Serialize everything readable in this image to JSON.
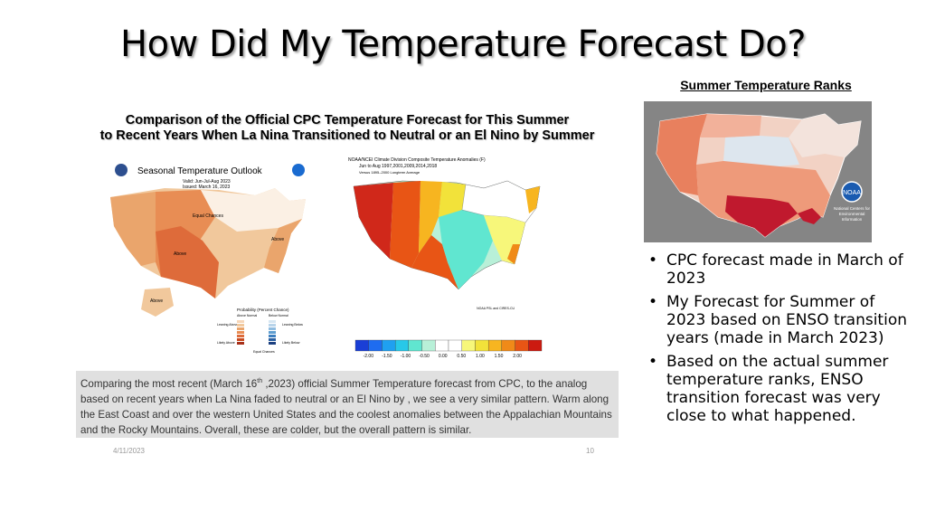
{
  "slide": {
    "title": "How Did My Temperature Forecast Do?",
    "footer_date": "4/11/2023",
    "page_number": "10"
  },
  "ranks": {
    "title": "Summer Temperature Ranks",
    "logo_text": "National Centers for Environmental Information"
  },
  "panel": {
    "heading_line1": "Comparison of the Official  CPC Temperature Forecast for This Summer",
    "heading_line2": "to Recent Years When La Nina Transitioned to Neutral or an El Nino by Summer",
    "outlook": {
      "title": "Seasonal Temperature Outlook",
      "valid": "Valid:  Jun-Jul-Aug 2023",
      "issued": "Issued:  March 16, 2023",
      "equal_chances": "Equal Chances",
      "above_labels": [
        "Above",
        "Above",
        "Above"
      ],
      "legend_title": "Probability (Percent Chance)",
      "legend_left": "Above Normal",
      "legend_right": "Below Normal",
      "legend_leaning_above": "Leaning Above",
      "legend_likely_above": "Likely Above",
      "legend_leaning_below": "Leaning Below",
      "legend_likely_below": "Likely Below",
      "legend_ec": "Equal Chances"
    },
    "analog": {
      "header_line1": "NOAA/NCEI Climate Division Composite Temperature Anomalies (F)",
      "header_line2": "Jun to Aug  1997,2001,2009,2014,2018",
      "header_line3": "Versus 1895–2000 Longterm Average",
      "credit": "NOAA PSL and CIRES-CU",
      "scale_labels": [
        "-2.00",
        "-1.50",
        "-1.00",
        "-0.50",
        "0.00",
        "0.50",
        "1.00",
        "1.50",
        "2.00"
      ],
      "scale_colors": [
        "#1a3fd6",
        "#1e6cf0",
        "#1fa0f0",
        "#27c8e8",
        "#60e6d0",
        "#b8f0d8",
        "#ffffff",
        "#ffffff",
        "#f7f77a",
        "#f2e23a",
        "#f7b520",
        "#f08a18",
        "#e85515",
        "#cc1a10"
      ]
    },
    "caption_part1": "Comparing the most recent (March 16",
    "caption_sup": "th",
    "caption_part2": " ,2023) official Summer Temperature forecast  from CPC, to the analog based on recent years when La Nina faded to neutral or an El Nino by , we see a very similar pattern.  Warm along  the East Coast and over the western United States and the coolest anomalies  between the Appalachian Mountains and the Rocky Mountains.  Overall, these are colder, but the overall pattern is similar."
  },
  "bullets": [
    "CPC forecast made in March of 2023",
    "My Forecast for Summer of 2023 based on ENSO transition years (made in March 2023)",
    "Based on the actual summer temperature ranks, ENSO transition forecast was very close to what happened."
  ],
  "colors": {
    "background": "#ffffff",
    "caption_bg": "#e0e0e0",
    "hot": "#cc2a2a",
    "warm": "#e8884a",
    "cool": "#6fd3d8"
  }
}
